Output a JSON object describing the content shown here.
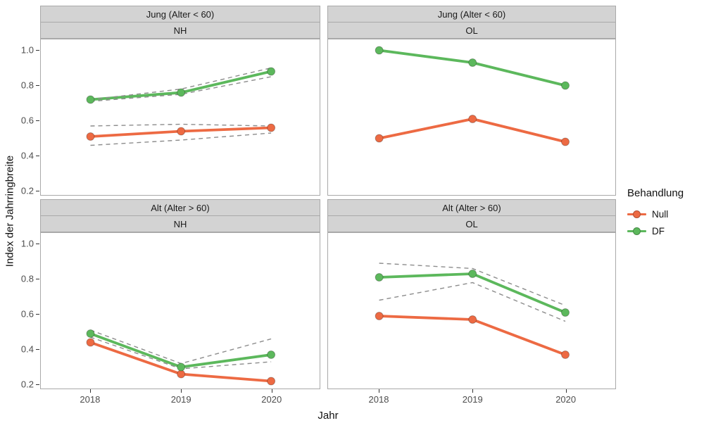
{
  "chart_data": {
    "type": "line",
    "xlabel": "Jahr",
    "ylabel": "Index der Jahrringbreite",
    "x": [
      2018,
      2019,
      2020
    ],
    "x_tick_labels": [
      "2018",
      "2019",
      "2020"
    ],
    "y_ticks": [
      "1.0",
      "0.8",
      "0.6",
      "0.4",
      "0.2"
    ],
    "y_tick_values": [
      1.0,
      0.8,
      0.6,
      0.4,
      0.2
    ],
    "ylim_display": [
      0.17,
      1.06
    ],
    "grid": "off",
    "legend": {
      "title": "Behandlung",
      "position": "right",
      "items": [
        {
          "label": "Null",
          "color": "#ED6A43"
        },
        {
          "label": "DF",
          "color": "#5CB85C"
        }
      ]
    },
    "ci_note": "dashed gray lines are confidence bounds",
    "facets": [
      {
        "row_label": "Jung (Alter < 60)",
        "col_label": "NH",
        "series": [
          {
            "name": "Null",
            "color": "#ED6A43",
            "values": [
              0.51,
              0.54,
              0.56
            ],
            "ci_lower": [
              0.46,
              0.49,
              0.53
            ],
            "ci_upper": [
              0.57,
              0.58,
              0.57
            ]
          },
          {
            "name": "DF",
            "color": "#5CB85C",
            "values": [
              0.72,
              0.76,
              0.88
            ],
            "ci_lower": [
              0.71,
              0.75,
              0.85
            ],
            "ci_upper": [
              0.72,
              0.78,
              0.9
            ]
          }
        ]
      },
      {
        "row_label": "Jung (Alter < 60)",
        "col_label": "OL",
        "series": [
          {
            "name": "Null",
            "color": "#ED6A43",
            "values": [
              0.5,
              0.61,
              0.48
            ]
          },
          {
            "name": "DF",
            "color": "#5CB85C",
            "values": [
              1.0,
              0.93,
              0.8
            ]
          }
        ]
      },
      {
        "row_label": "Alt (Alter > 60)",
        "col_label": "NH",
        "series": [
          {
            "name": "Null",
            "color": "#ED6A43",
            "values": [
              0.44,
              0.26,
              0.22
            ]
          },
          {
            "name": "DF",
            "color": "#5CB85C",
            "values": [
              0.49,
              0.3,
              0.37
            ],
            "ci_lower": [
              0.47,
              0.29,
              0.33
            ],
            "ci_upper": [
              0.51,
              0.32,
              0.46
            ]
          }
        ]
      },
      {
        "row_label": "Alt (Alter > 60)",
        "col_label": "OL",
        "series": [
          {
            "name": "Null",
            "color": "#ED6A43",
            "values": [
              0.59,
              0.57,
              0.37
            ]
          },
          {
            "name": "DF",
            "color": "#5CB85C",
            "values": [
              0.81,
              0.83,
              0.61
            ],
            "ci_lower": [
              0.68,
              0.78,
              0.56
            ],
            "ci_upper": [
              0.89,
              0.86,
              0.65
            ]
          }
        ]
      }
    ],
    "style": {
      "ci_color": "#8c8c8c",
      "strip_bg": "#d3d3d3",
      "panel_border": "#a9a9a9",
      "axis_text_color": "#4d4d4d",
      "point_radius": 5.5,
      "line_width": 3.8
    }
  }
}
